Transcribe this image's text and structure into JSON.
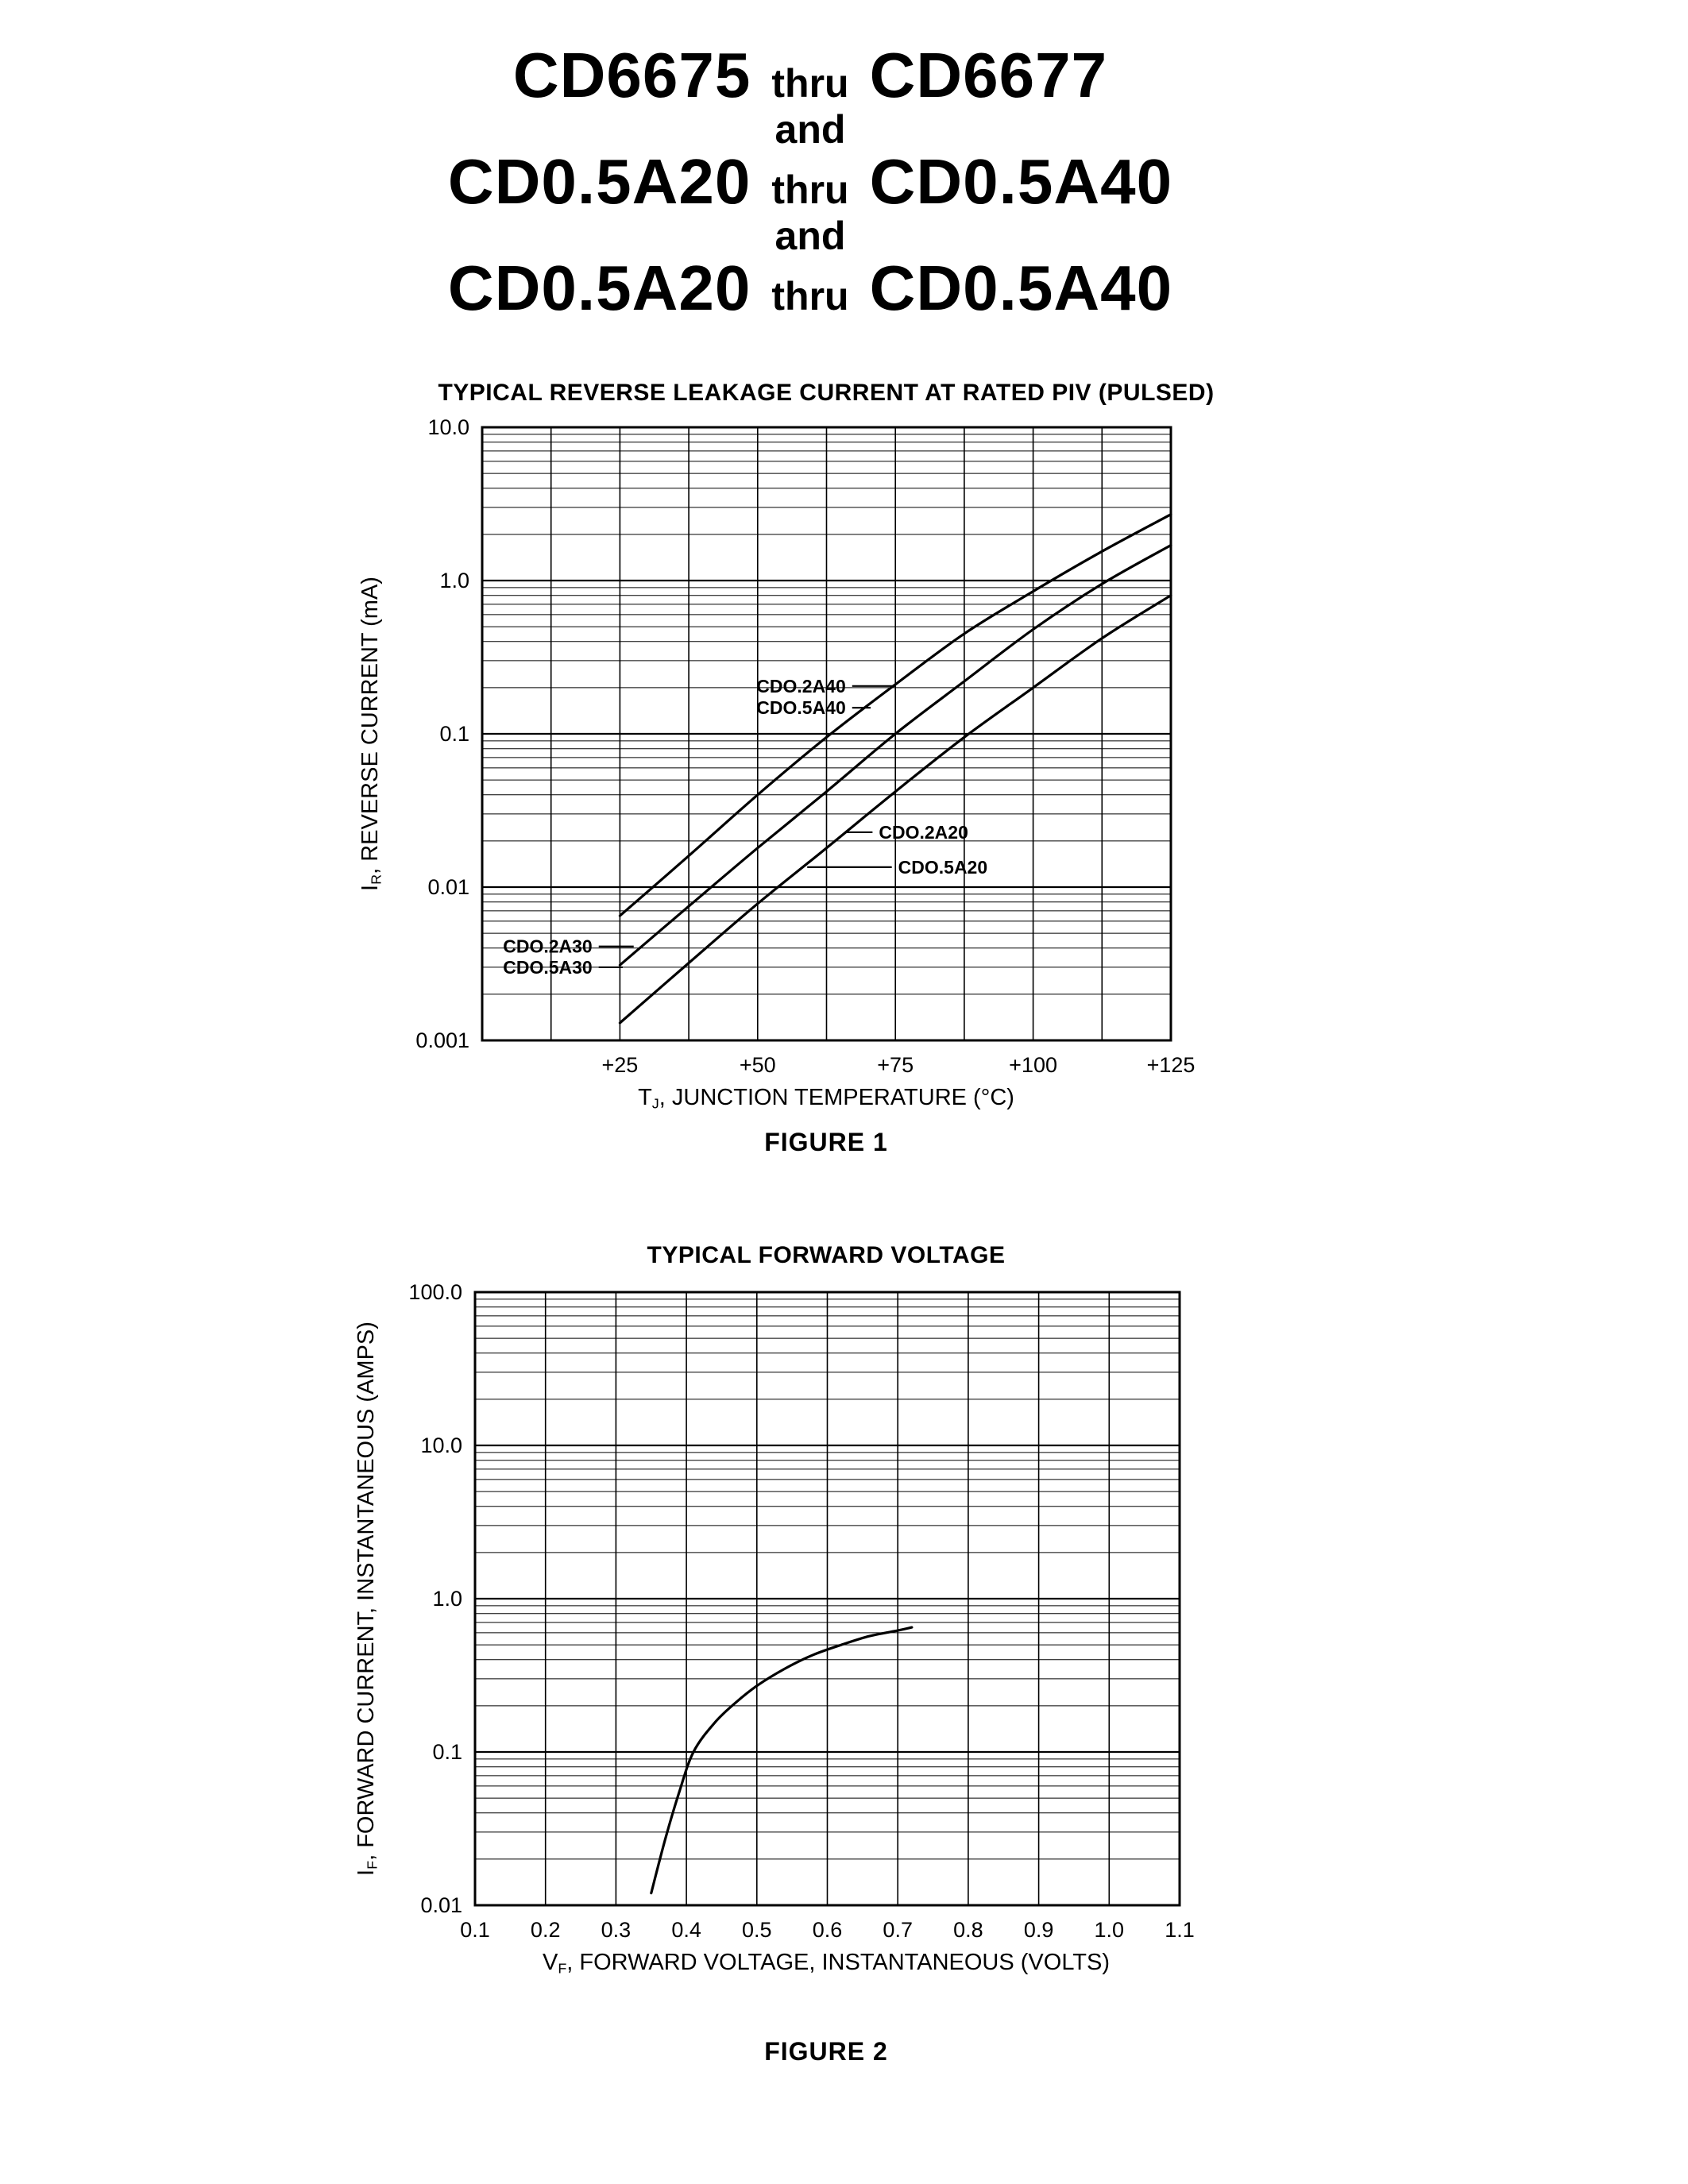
{
  "page": {
    "colors": {
      "ink": "#000000",
      "background": "#ffffff"
    }
  },
  "title": {
    "row1": {
      "left": "CD6675",
      "mid": "thru",
      "right": "CD6677"
    },
    "row2": "and",
    "row3": {
      "left": "CD0.5A20",
      "mid": "thru",
      "right": "CD0.5A40"
    },
    "row4": "and",
    "row5": {
      "left": "CD0.5A20",
      "mid": "thru",
      "right": "CD0.5A40"
    }
  },
  "chart_data": [
    {
      "type": "line",
      "title": "TYPICAL REVERSE LEAKAGE CURRENT AT RATED PIV (PULSED)",
      "figure_caption": "FIGURE 1",
      "xlabel": {
        "pre": "T",
        "sub": "J",
        "rest": ", JUNCTION TEMPERATURE (°C)"
      },
      "ylabel": {
        "pre": "I",
        "sub": "R",
        "rest": ", REVERSE CURRENT (mA)"
      },
      "grid": true,
      "legend": "none",
      "x_axis": {
        "min": 0,
        "max": 125,
        "grid_step": 12.5,
        "ticks": [
          {
            "value": 25,
            "label": "+25"
          },
          {
            "value": 50,
            "label": "+50"
          },
          {
            "value": 75,
            "label": "+75"
          },
          {
            "value": 100,
            "label": "+100"
          },
          {
            "value": 125,
            "label": "+125"
          }
        ]
      },
      "y_axis": {
        "scale": "log",
        "min": 0.001,
        "max": 10,
        "ticks": [
          {
            "value": 10,
            "label": "10.0"
          },
          {
            "value": 1,
            "label": "1.0"
          },
          {
            "value": 0.1,
            "label": "0.1"
          },
          {
            "value": 0.01,
            "label": "0.01"
          },
          {
            "value": 0.001,
            "label": "0.001"
          }
        ]
      },
      "series": [
        {
          "name": "CDO.2A40 / CDO.5A40",
          "points": [
            [
              25,
              0.0065
            ],
            [
              37.5,
              0.016
            ],
            [
              50,
              0.04
            ],
            [
              62.5,
              0.095
            ],
            [
              75,
              0.21
            ],
            [
              87.5,
              0.45
            ],
            [
              100,
              0.85
            ],
            [
              112.5,
              1.55
            ],
            [
              125,
              2.7
            ]
          ]
        },
        {
          "name": "CDO.2A30 / CDO.5A30",
          "points": [
            [
              25,
              0.0031
            ],
            [
              37.5,
              0.0075
            ],
            [
              50,
              0.018
            ],
            [
              62.5,
              0.042
            ],
            [
              75,
              0.1
            ],
            [
              87.5,
              0.22
            ],
            [
              100,
              0.48
            ],
            [
              112.5,
              0.95
            ],
            [
              125,
              1.7
            ]
          ]
        },
        {
          "name": "CDO.2A20 / CDO.5A20",
          "points": [
            [
              25,
              0.0013
            ],
            [
              37.5,
              0.0032
            ],
            [
              50,
              0.0078
            ],
            [
              62.5,
              0.018
            ],
            [
              75,
              0.042
            ],
            [
              87.5,
              0.095
            ],
            [
              100,
              0.2
            ],
            [
              112.5,
              0.42
            ],
            [
              125,
              0.8
            ]
          ]
        }
      ],
      "annotations": [
        {
          "text": "CDO.2A40",
          "tx": 66,
          "ty": 0.205,
          "align": "right",
          "target_x": 75
        },
        {
          "text": "CDO.5A40",
          "tx": 66,
          "ty": 0.148,
          "align": "right",
          "target_x": 70.5
        },
        {
          "text": "CDO.2A20",
          "tx": 72,
          "ty": 0.0228,
          "align": "left",
          "target_x": 66
        },
        {
          "text": "CDO.5A20",
          "tx": 75.5,
          "ty": 0.0135,
          "align": "left",
          "target_x": 59
        },
        {
          "text": "CDO.2A30",
          "tx": 20,
          "ty": 0.0041,
          "align": "right",
          "target_x": 27.5
        },
        {
          "text": "CDO.5A30",
          "tx": 20,
          "ty": 0.003,
          "align": "right",
          "target_x": 25.5
        }
      ]
    },
    {
      "type": "line",
      "title": "TYPICAL FORWARD VOLTAGE",
      "figure_caption": "FIGURE 2",
      "xlabel": {
        "pre": "V",
        "sub": "F",
        "rest": ", FORWARD VOLTAGE, INSTANTANEOUS (VOLTS)"
      },
      "ylabel": {
        "pre": "I",
        "sub": "F",
        "rest": ", FORWARD CURRENT, INSTANTANEOUS (AMPS)"
      },
      "grid": true,
      "legend": "none",
      "x_axis": {
        "min": 0.1,
        "max": 1.1,
        "grid_step": 0.1,
        "ticks": [
          {
            "value": 0.1,
            "label": "0.1"
          },
          {
            "value": 0.2,
            "label": "0.2"
          },
          {
            "value": 0.3,
            "label": "0.3"
          },
          {
            "value": 0.4,
            "label": "0.4"
          },
          {
            "value": 0.5,
            "label": "0.5"
          },
          {
            "value": 0.6,
            "label": "0.6"
          },
          {
            "value": 0.7,
            "label": "0.7"
          },
          {
            "value": 0.8,
            "label": "0.8"
          },
          {
            "value": 0.9,
            "label": "0.9"
          },
          {
            "value": 1.0,
            "label": "1.0"
          },
          {
            "value": 1.1,
            "label": "1.1"
          }
        ]
      },
      "y_axis": {
        "scale": "log",
        "min": 0.01,
        "max": 100,
        "ticks": [
          {
            "value": 100,
            "label": "100.0"
          },
          {
            "value": 10,
            "label": "10.0"
          },
          {
            "value": 1,
            "label": "1.0"
          },
          {
            "value": 0.1,
            "label": "0.1"
          },
          {
            "value": 0.01,
            "label": "0.01"
          }
        ]
      },
      "series": [
        {
          "name": "forward-voltage-curve",
          "points": [
            [
              0.35,
              0.012
            ],
            [
              0.37,
              0.027
            ],
            [
              0.39,
              0.055
            ],
            [
              0.41,
              0.1
            ],
            [
              0.44,
              0.155
            ],
            [
              0.47,
              0.21
            ],
            [
              0.5,
              0.27
            ],
            [
              0.54,
              0.35
            ],
            [
              0.58,
              0.43
            ],
            [
              0.62,
              0.5
            ],
            [
              0.66,
              0.57
            ],
            [
              0.7,
              0.62
            ],
            [
              0.72,
              0.65
            ]
          ]
        }
      ],
      "annotations": []
    }
  ]
}
